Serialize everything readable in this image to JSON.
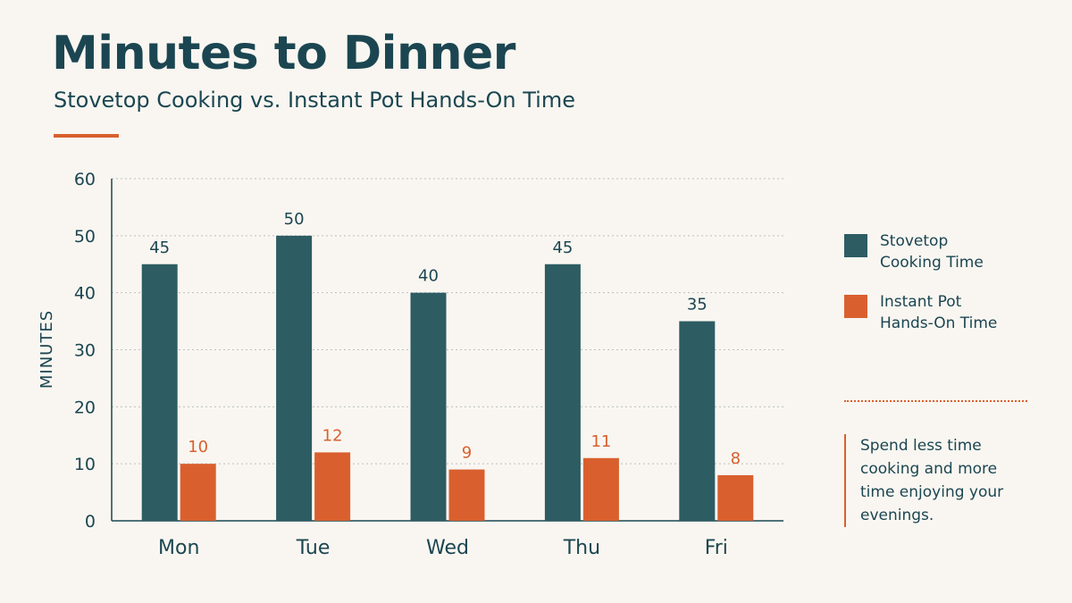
{
  "header": {
    "title": "Minutes to Dinner",
    "subtitle": "Stovetop Cooking vs. Instant Pot Hands-On Time"
  },
  "colors": {
    "stovetop": "#2d5c63",
    "instant_pot": "#d9602e",
    "text": "#1b4651",
    "accent": "#d9602e",
    "background": "#f9f6f1"
  },
  "legend": {
    "items": [
      {
        "label": "Stovetop Cooking Time",
        "color": "#2d5c63"
      },
      {
        "label": "Instant Pot Hands-On Time",
        "color": "#d9602e"
      }
    ]
  },
  "note": "Spend less time cooking and more time enjoying your evenings.",
  "chart_data": {
    "type": "bar",
    "categories": [
      "Mon",
      "Tue",
      "Wed",
      "Thu",
      "Fri"
    ],
    "series": [
      {
        "name": "Stovetop Cooking Time",
        "values": [
          45,
          50,
          40,
          45,
          35
        ],
        "color": "#2d5c63"
      },
      {
        "name": "Instant Pot Hands-On Time",
        "values": [
          10,
          12,
          9,
          11,
          8
        ],
        "color": "#d9602e"
      }
    ],
    "title": "Minutes to Dinner",
    "subtitle": "Stovetop Cooking vs. Instant Pot Hands-On Time",
    "xlabel": "",
    "ylabel": "MINUTES",
    "ylim": [
      0,
      60
    ],
    "yticks": [
      0,
      10,
      20,
      30,
      40,
      50,
      60
    ],
    "grid": true,
    "legend_position": "right"
  }
}
